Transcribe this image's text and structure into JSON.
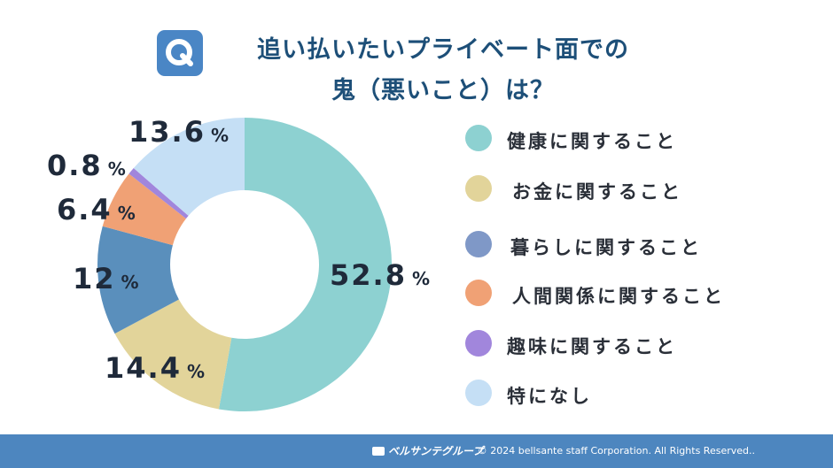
{
  "header": {
    "icon_letter": "Q",
    "title_line1": "追い払いたいプライベート面での",
    "title_line2": "鬼（悪いこと）は？"
  },
  "chart_data": {
    "type": "pie",
    "title": "追い払いたいプライベート面での鬼（悪いこと）は？",
    "legend_placement": "right",
    "categories": [
      "健康に関すること",
      "お金に関すること",
      "暮らしに関すること",
      "人間関係に関すること",
      "趣味に関すること",
      "特になし"
    ],
    "values": [
      52.8,
      14.4,
      12,
      6.4,
      0.8,
      13.6
    ],
    "value_labels": [
      "52.8",
      "14.4",
      "12",
      "6.4",
      "0.8",
      "13.6"
    ],
    "unit": "%",
    "colors": [
      "#8dd1d1",
      "#e2d49a",
      "#5a8fbc",
      "#f0a175",
      "#a186dc",
      "#c5dff5"
    ]
  },
  "legend": {
    "items": [
      {
        "label": "健康に関すること",
        "color": "#8dd1d1"
      },
      {
        "label": "お金に関すること",
        "color": "#e2d49a"
      },
      {
        "label": "暮らしに関すること",
        "color": "#7f98c7"
      },
      {
        "label": "人間関係に関すること",
        "color": "#f0a175"
      },
      {
        "label": "趣味に関すること",
        "color": "#a186dc"
      },
      {
        "label": "特になし",
        "color": "#c5dff5"
      }
    ]
  },
  "footer": {
    "logo_text": "ベルサンテグループ",
    "copyright": "© 2024 bellsante staff Corporation. All Rights Reserved.."
  }
}
